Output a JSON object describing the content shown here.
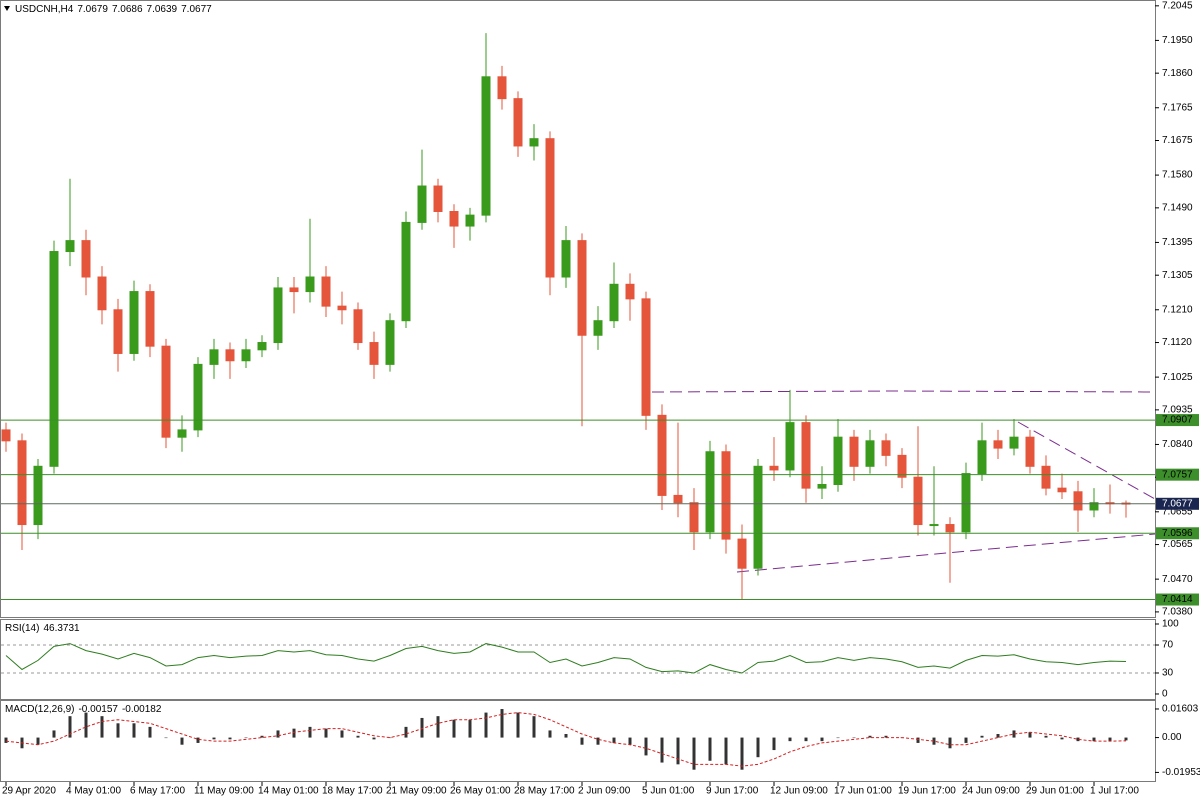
{
  "chart_data": {
    "type": "candlestick",
    "symbol": "USDCNH,H4",
    "categories": [
      "29 Apr 2020",
      null,
      null,
      null,
      "4 May 01:00",
      null,
      null,
      null,
      "6 May 17:00",
      null,
      null,
      null,
      "11 May 09:00",
      null,
      null,
      null,
      "14 May 01:00",
      null,
      null,
      null,
      "18 May 17:00",
      null,
      null,
      null,
      "21 May 09:00",
      null,
      null,
      null,
      "26 May 01:00",
      null,
      null,
      null,
      "28 May 17:00",
      null,
      null,
      null,
      "2 Jun 09:00",
      null,
      null,
      null,
      "5 Jun 01:00",
      null,
      null,
      null,
      "9 Jun 17:00",
      null,
      null,
      null,
      "12 Jun 09:00",
      null,
      null,
      null,
      "17 Jun 01:00",
      null,
      null,
      null,
      "19 Jun 17:00",
      null,
      null,
      null,
      "24 Jun 09:00",
      null,
      null,
      null,
      "29 Jun 01:00",
      null,
      null,
      null,
      "1 Jul 17:00",
      null,
      null
    ],
    "candles": [
      [
        7.088,
        7.09,
        7.082,
        7.085
      ],
      [
        7.085,
        7.087,
        7.055,
        7.062
      ],
      [
        7.062,
        7.08,
        7.058,
        7.078
      ],
      [
        7.078,
        7.14,
        7.076,
        7.137
      ],
      [
        7.137,
        7.157,
        7.133,
        7.14
      ],
      [
        7.14,
        7.143,
        7.125,
        7.13
      ],
      [
        7.13,
        7.133,
        7.117,
        7.121
      ],
      [
        7.121,
        7.124,
        7.104,
        7.109
      ],
      [
        7.109,
        7.129,
        7.107,
        7.126
      ],
      [
        7.126,
        7.128,
        7.108,
        7.111
      ],
      [
        7.111,
        7.113,
        7.083,
        7.086
      ],
      [
        7.086,
        7.092,
        7.082,
        7.088
      ],
      [
        7.088,
        7.108,
        7.086,
        7.106
      ],
      [
        7.106,
        7.113,
        7.102,
        7.11
      ],
      [
        7.11,
        7.112,
        7.102,
        7.107
      ],
      [
        7.107,
        7.113,
        7.105,
        7.11
      ],
      [
        7.11,
        7.114,
        7.108,
        7.112
      ],
      [
        7.112,
        7.13,
        7.11,
        7.127
      ],
      [
        7.127,
        7.13,
        7.12,
        7.126
      ],
      [
        7.126,
        7.146,
        7.123,
        7.13
      ],
      [
        7.13,
        7.133,
        7.119,
        7.122
      ],
      [
        7.122,
        7.126,
        7.117,
        7.121
      ],
      [
        7.121,
        7.123,
        7.11,
        7.112
      ],
      [
        7.112,
        7.115,
        7.102,
        7.106
      ],
      [
        7.106,
        7.12,
        7.104,
        7.118
      ],
      [
        7.118,
        7.148,
        7.116,
        7.145
      ],
      [
        7.145,
        7.165,
        7.143,
        7.155
      ],
      [
        7.155,
        7.157,
        7.145,
        7.148
      ],
      [
        7.148,
        7.15,
        7.138,
        7.144
      ],
      [
        7.144,
        7.149,
        7.14,
        7.147
      ],
      [
        7.147,
        7.197,
        7.145,
        7.185
      ],
      [
        7.185,
        7.188,
        7.176,
        7.179
      ],
      [
        7.179,
        7.181,
        7.163,
        7.166
      ],
      [
        7.166,
        7.172,
        7.162,
        7.168
      ],
      [
        7.168,
        7.17,
        7.125,
        7.13
      ],
      [
        7.13,
        7.144,
        7.127,
        7.14
      ],
      [
        7.14,
        7.142,
        7.089,
        7.114
      ],
      [
        7.114,
        7.122,
        7.11,
        7.118
      ],
      [
        7.118,
        7.134,
        7.116,
        7.128
      ],
      [
        7.128,
        7.131,
        7.118,
        7.124
      ],
      [
        7.124,
        7.126,
        7.088,
        7.092
      ],
      [
        7.092,
        7.095,
        7.066,
        7.07
      ],
      [
        7.07,
        7.09,
        7.064,
        7.068
      ],
      [
        7.068,
        7.072,
        7.055,
        7.06
      ],
      [
        7.06,
        7.085,
        7.058,
        7.082
      ],
      [
        7.082,
        7.084,
        7.054,
        7.058
      ],
      [
        7.058,
        7.062,
        7.0414,
        7.05
      ],
      [
        7.05,
        7.08,
        7.048,
        7.078
      ],
      [
        7.078,
        7.086,
        7.074,
        7.077
      ],
      [
        7.077,
        7.099,
        7.075,
        7.09
      ],
      [
        7.09,
        7.092,
        7.068,
        7.072
      ],
      [
        7.072,
        7.078,
        7.069,
        7.073
      ],
      [
        7.073,
        7.091,
        7.071,
        7.086
      ],
      [
        7.086,
        7.088,
        7.074,
        7.078
      ],
      [
        7.078,
        7.088,
        7.076,
        7.085
      ],
      [
        7.085,
        7.087,
        7.078,
        7.081
      ],
      [
        7.081,
        7.083,
        7.072,
        7.075
      ],
      [
        7.075,
        7.089,
        7.059,
        7.062
      ],
      [
        7.062,
        7.078,
        7.059,
        7.062
      ],
      [
        7.062,
        7.064,
        7.046,
        7.06
      ],
      [
        7.06,
        7.079,
        7.058,
        7.076
      ],
      [
        7.076,
        7.09,
        7.074,
        7.085
      ],
      [
        7.085,
        7.088,
        7.08,
        7.083
      ],
      [
        7.083,
        7.091,
        7.081,
        7.086
      ],
      [
        7.086,
        7.088,
        7.076,
        7.078
      ],
      [
        7.078,
        7.081,
        7.07,
        7.072
      ],
      [
        7.072,
        7.076,
        7.069,
        7.071
      ],
      [
        7.071,
        7.074,
        7.06,
        7.066
      ],
      [
        7.066,
        7.072,
        7.064,
        7.068
      ],
      [
        7.068,
        7.073,
        7.065,
        7.0679
      ],
      [
        7.0679,
        7.0686,
        7.0639,
        7.0677
      ]
    ],
    "up_color": "#3a9a1c",
    "down_color": "#e5553b",
    "ylim": [
      7.0366,
      7.2061
    ],
    "yticks": [
      7.2045,
      {
        "value": 7.195,
        "label": "7.1950"
      },
      {
        "value": 7.186,
        "label": "7.1860"
      },
      7.1765,
      7.1675,
      {
        "value": 7.158,
        "label": "7.1580"
      },
      {
        "value": 7.149,
        "label": "7.1490"
      },
      7.1395,
      7.1305,
      {
        "value": 7.121,
        "label": "7.1210"
      },
      {
        "value": 7.112,
        "label": "7.1120"
      },
      7.1025,
      7.0935,
      {
        "value": 7.084,
        "label": "7.0840"
      },
      {
        "value": 7.075,
        "label": "7.0750"
      },
      7.0655,
      7.0565,
      {
        "value": 7.047,
        "label": "7.0470"
      },
      {
        "value": 7.038,
        "label": "7.0380"
      }
    ],
    "levels": [
      7.0907,
      7.0757,
      7.0596,
      7.0414
    ],
    "level_color": "#3c8f2a",
    "rsi": {
      "name": "RSI(14)",
      "values": [
        55,
        35,
        48,
        68,
        72,
        62,
        57,
        50,
        58,
        52,
        40,
        42,
        52,
        55,
        52,
        54,
        55,
        62,
        60,
        62,
        56,
        55,
        50,
        47,
        55,
        65,
        68,
        62,
        58,
        60,
        72,
        67,
        60,
        60,
        45,
        50,
        40,
        45,
        52,
        50,
        38,
        32,
        33,
        30,
        42,
        35,
        30,
        45,
        47,
        55,
        45,
        46,
        52,
        48,
        52,
        50,
        46,
        38,
        40,
        37,
        48,
        55,
        54,
        56,
        50,
        46,
        45,
        42,
        45,
        47,
        46.3731
      ],
      "color": "#2e7d1f",
      "ylim": [
        -8.6,
        105.7
      ],
      "yticks": [
        100,
        70,
        30,
        0
      ]
    },
    "macd": {
      "name": "MACD(12,26,9)",
      "histogram": [
        -0.003,
        -0.006,
        -0.004,
        0.004,
        0.012,
        0.014,
        0.012,
        0.008,
        0.008,
        0.006,
        0,
        -0.004,
        -0.003,
        -0.001,
        -0.001,
        0,
        0.001,
        0.004,
        0.005,
        0.006,
        0.005,
        0.004,
        0.001,
        -0.001,
        0,
        0.006,
        0.011,
        0.012,
        0.01,
        0.01,
        0.014,
        0.016,
        0.014,
        0.012,
        0.004,
        0.002,
        -0.004,
        -0.004,
        -0.003,
        -0.004,
        -0.01,
        -0.014,
        -0.015,
        -0.018,
        -0.013,
        -0.015,
        -0.018,
        -0.011,
        -0.007,
        -0.002,
        -0.002,
        -0.002,
        0,
        0,
        0.001,
        0.001,
        0,
        -0.003,
        -0.004,
        -0.006,
        -0.003,
        0.001,
        0.002,
        0.004,
        0.003,
        0.001,
        -0.001,
        -0.002,
        -0.002,
        -0.002,
        -0.00157
      ],
      "signal": [
        -0.002,
        -0.003,
        -0.004,
        -0.002,
        0.002,
        0.006,
        0.009,
        0.01,
        0.009,
        0.008,
        0.005,
        0.002,
        -0.001,
        -0.002,
        -0.002,
        -0.001,
        0,
        0.001,
        0.003,
        0.004,
        0.005,
        0.005,
        0.003,
        0.001,
        0,
        0.002,
        0.005,
        0.008,
        0.01,
        0.01,
        0.011,
        0.013,
        0.014,
        0.013,
        0.01,
        0.006,
        0.002,
        -0.001,
        -0.003,
        -0.004,
        -0.006,
        -0.009,
        -0.012,
        -0.015,
        -0.015,
        -0.015,
        -0.016,
        -0.015,
        -0.012,
        -0.008,
        -0.005,
        -0.003,
        -0.002,
        -0.001,
        0,
        0,
        0,
        -0.001,
        -0.002,
        -0.004,
        -0.004,
        -0.002,
        0,
        0.002,
        0.003,
        0.002,
        0.001,
        -0.001,
        -0.002,
        -0.002,
        -0.00182
      ],
      "histogram_color": "#333333",
      "signal_color": "#d62020",
      "ylim": [
        -0.0249,
        0.0205
      ],
      "yticks": [
        0.01603,
        {
          "value": 0,
          "label": "0.00"
        },
        -0.01953
      ]
    }
  }
}
